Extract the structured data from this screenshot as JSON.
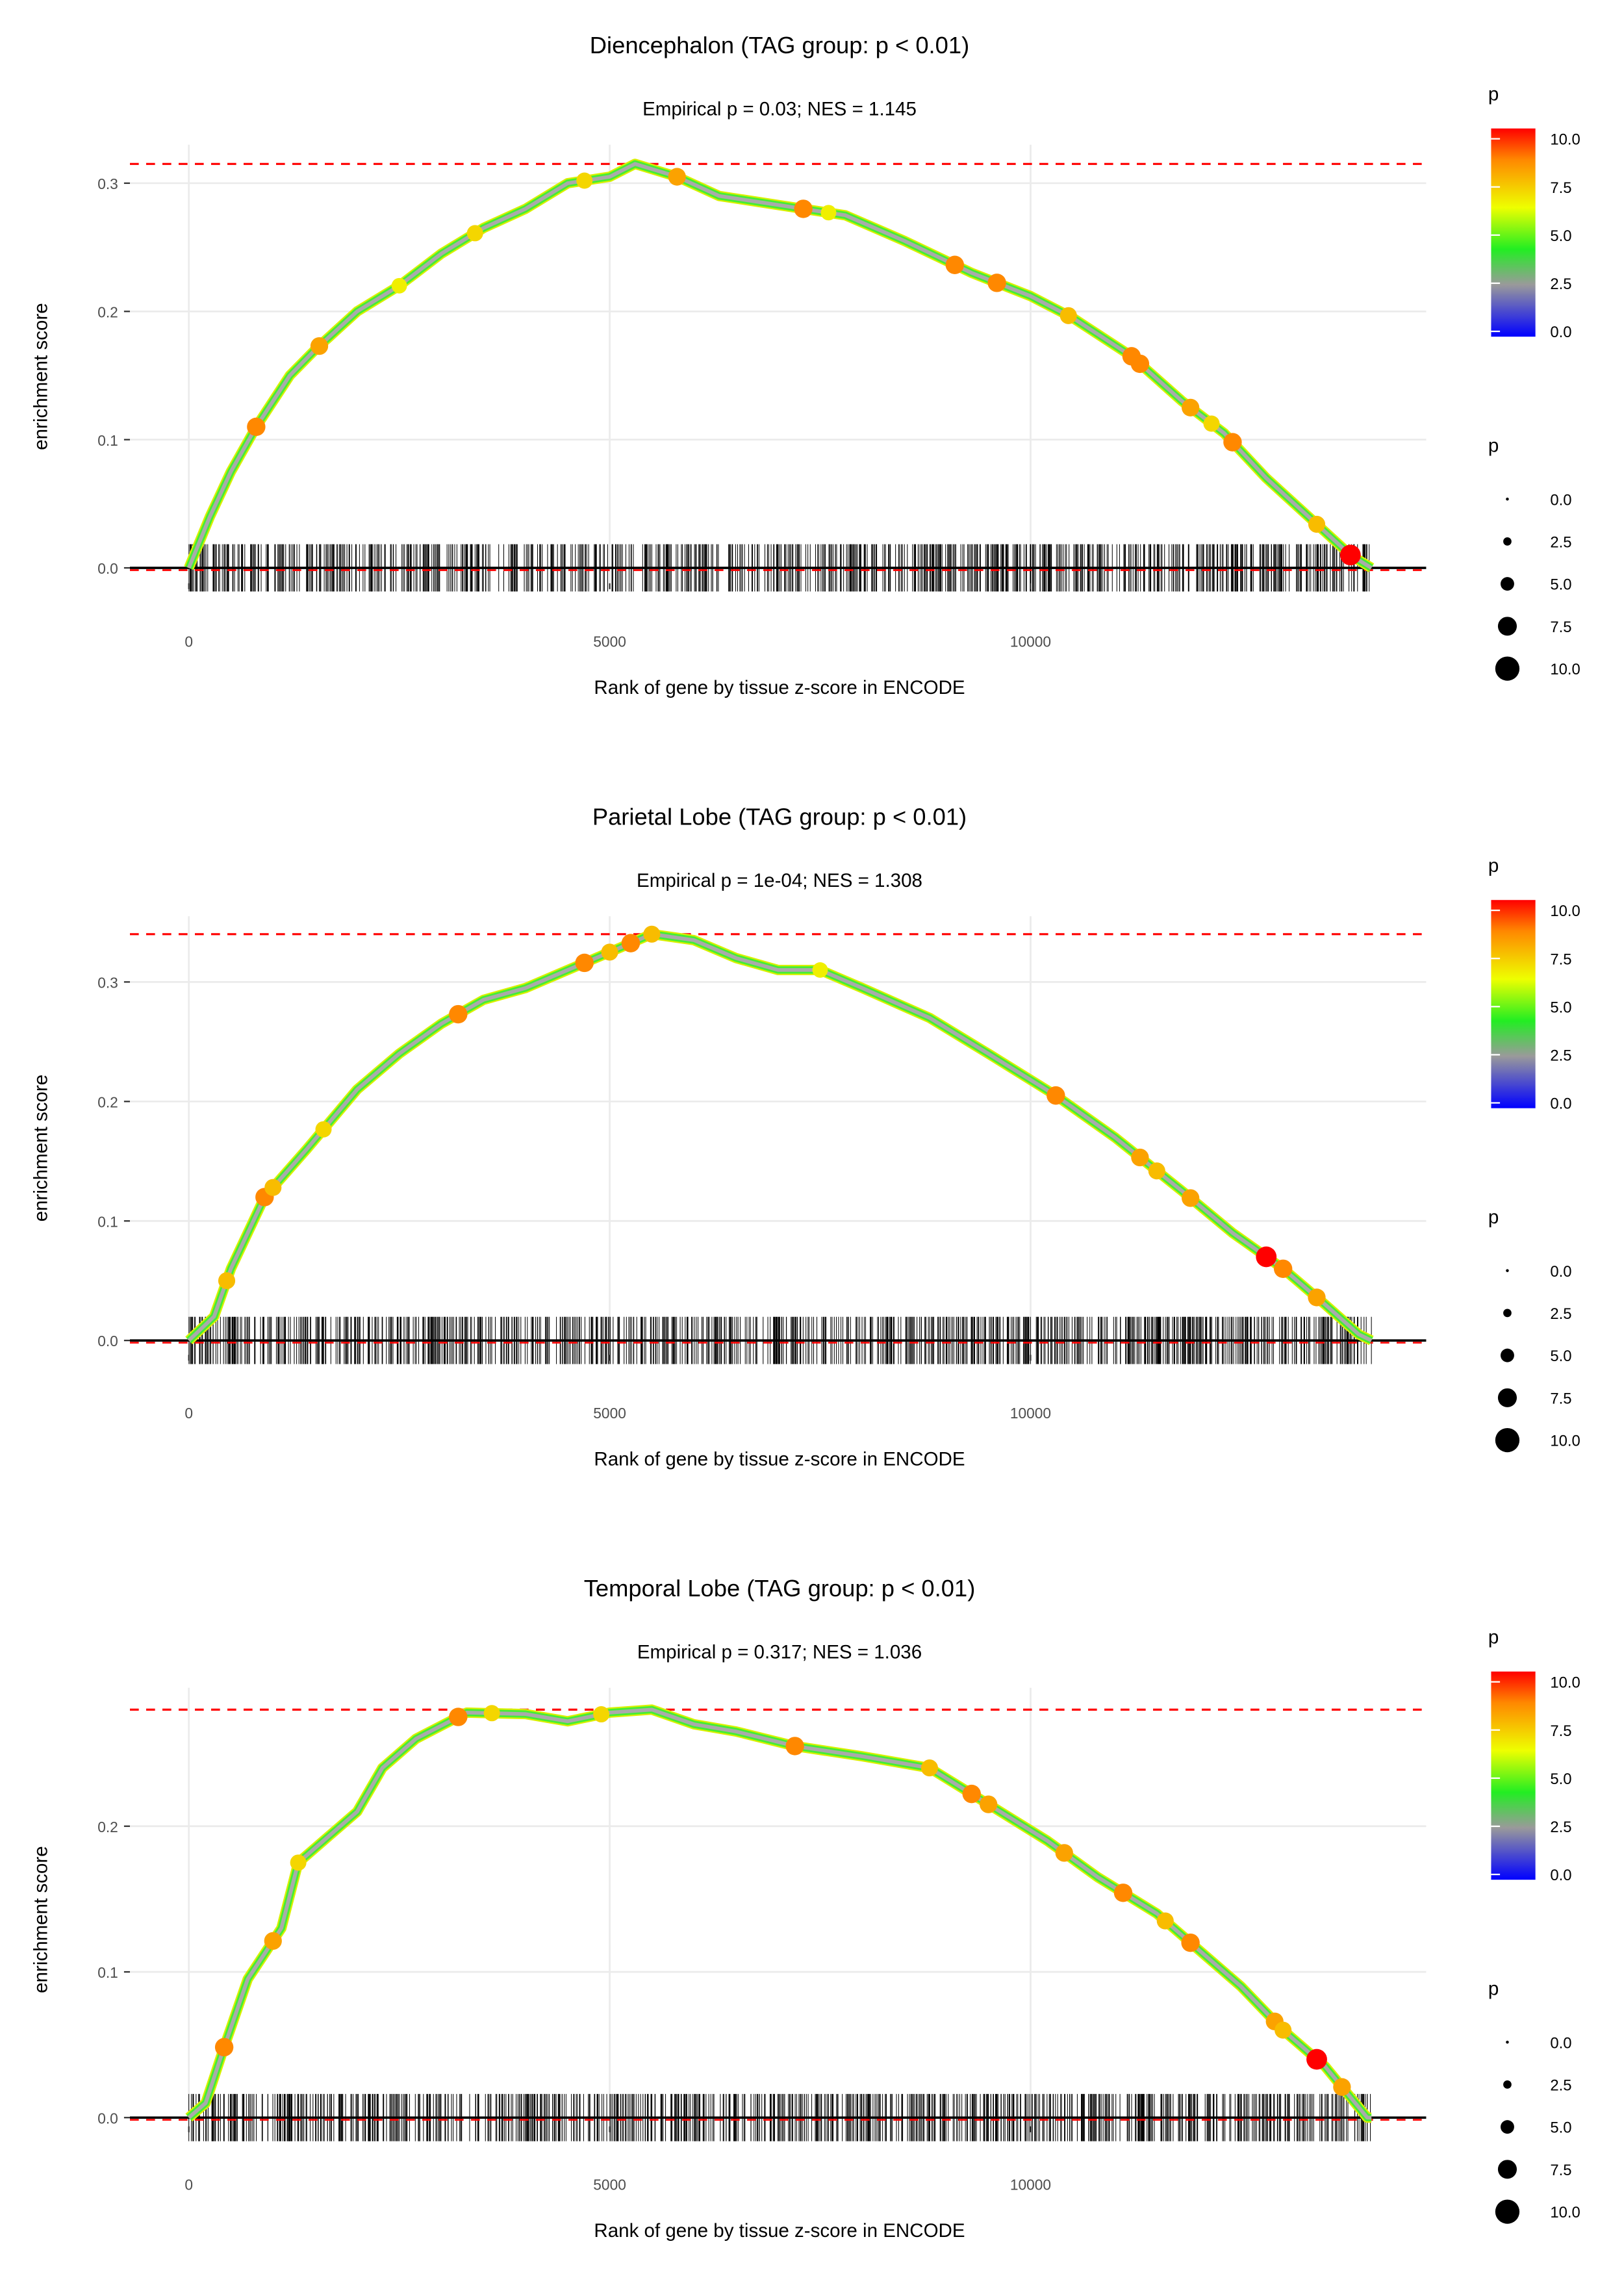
{
  "chart_data": [
    {
      "type": "line",
      "title": "Diencephalon (TAG group: p < 0.01)",
      "subtitle": "Empirical p = 0.03; NES = 1.145",
      "xlabel": "Rank of gene by tissue z-score in ENCODE",
      "ylabel": "enrichment score",
      "xlim": [
        -700,
        14700
      ],
      "ylim": [
        -0.012,
        0.33
      ],
      "xticks": [
        0,
        5000,
        10000
      ],
      "xtick_labels": [
        "0",
        "5000",
        "10000"
      ],
      "yticks": [
        0,
        0.1,
        0.2,
        0.3
      ],
      "ytick_labels": [
        "0.0",
        "0.1",
        "0.2",
        "0.3"
      ],
      "max_es": 0.315,
      "curve": [
        [
          0,
          0
        ],
        [
          250,
          0.04
        ],
        [
          500,
          0.075
        ],
        [
          800,
          0.11
        ],
        [
          1200,
          0.15
        ],
        [
          1500,
          0.17
        ],
        [
          2000,
          0.2
        ],
        [
          2500,
          0.22
        ],
        [
          3000,
          0.245
        ],
        [
          3500,
          0.265
        ],
        [
          4000,
          0.28
        ],
        [
          4500,
          0.3
        ],
        [
          5000,
          0.305
        ],
        [
          5300,
          0.315
        ],
        [
          5800,
          0.305
        ],
        [
          6300,
          0.29
        ],
        [
          7000,
          0.283
        ],
        [
          7800,
          0.275
        ],
        [
          8500,
          0.255
        ],
        [
          9300,
          0.23
        ],
        [
          10000,
          0.212
        ],
        [
          10500,
          0.195
        ],
        [
          11200,
          0.165
        ],
        [
          11800,
          0.13
        ],
        [
          12300,
          0.105
        ],
        [
          12800,
          0.07
        ],
        [
          13300,
          0.04
        ],
        [
          13800,
          0.01
        ],
        [
          14050,
          0
        ]
      ],
      "highlight_points": [
        [
          800,
          8.5
        ],
        [
          1550,
          8
        ],
        [
          2500,
          6.5
        ],
        [
          3400,
          7
        ],
        [
          4700,
          7
        ],
        [
          5800,
          8
        ],
        [
          7300,
          8.5
        ],
        [
          7600,
          6.5
        ],
        [
          9100,
          8.5
        ],
        [
          9600,
          8.5
        ],
        [
          10450,
          7.5
        ],
        [
          11200,
          8.5
        ],
        [
          11300,
          8.5
        ],
        [
          11900,
          8
        ],
        [
          12150,
          7
        ],
        [
          12400,
          8.5
        ],
        [
          13400,
          7.5
        ],
        [
          13800,
          10
        ]
      ]
    },
    {
      "type": "line",
      "title": "Parietal Lobe (TAG group: p < 0.01)",
      "subtitle": "Empirical p = 1e-04; NES = 1.308",
      "xlabel": "Rank of gene by tissue z-score in ENCODE",
      "ylabel": "enrichment score",
      "xlim": [
        -700,
        14700
      ],
      "ylim": [
        -0.012,
        0.355
      ],
      "xticks": [
        0,
        5000,
        10000
      ],
      "xtick_labels": [
        "0",
        "5000",
        "10000"
      ],
      "yticks": [
        0,
        0.1,
        0.2,
        0.3
      ],
      "ytick_labels": [
        "0.0",
        "0.1",
        "0.2",
        "0.3"
      ],
      "max_es": 0.34,
      "curve": [
        [
          0,
          0
        ],
        [
          300,
          0.02
        ],
        [
          500,
          0.06
        ],
        [
          900,
          0.12
        ],
        [
          1400,
          0.16
        ],
        [
          2000,
          0.21
        ],
        [
          2500,
          0.24
        ],
        [
          3000,
          0.265
        ],
        [
          3500,
          0.285
        ],
        [
          4000,
          0.295
        ],
        [
          4500,
          0.31
        ],
        [
          5000,
          0.325
        ],
        [
          5500,
          0.34
        ],
        [
          6000,
          0.335
        ],
        [
          6500,
          0.32
        ],
        [
          7000,
          0.31
        ],
        [
          7500,
          0.31
        ],
        [
          8000,
          0.295
        ],
        [
          8800,
          0.27
        ],
        [
          9500,
          0.24
        ],
        [
          10300,
          0.205
        ],
        [
          11000,
          0.17
        ],
        [
          11800,
          0.125
        ],
        [
          12400,
          0.09
        ],
        [
          13000,
          0.06
        ],
        [
          13500,
          0.03
        ],
        [
          13900,
          0.005
        ],
        [
          14050,
          0
        ]
      ],
      "highlight_points": [
        [
          450,
          7.5
        ],
        [
          900,
          8.5
        ],
        [
          1000,
          7.5
        ],
        [
          1600,
          7
        ],
        [
          3200,
          8.5
        ],
        [
          4700,
          8.5
        ],
        [
          5000,
          7.5
        ],
        [
          5250,
          8.5
        ],
        [
          5500,
          7.5
        ],
        [
          7500,
          6.5
        ],
        [
          10300,
          8.5
        ],
        [
          11300,
          8
        ],
        [
          11500,
          7.5
        ],
        [
          11900,
          8
        ],
        [
          12800,
          10
        ],
        [
          13000,
          8.5
        ],
        [
          13400,
          8
        ]
      ]
    },
    {
      "type": "line",
      "title": "Temporal Lobe (TAG group: p < 0.01)",
      "subtitle": "Empirical p = 0.317; NES = 1.036",
      "xlabel": "Rank of gene by tissue z-score in ENCODE",
      "ylabel": "enrichment score",
      "xlim": [
        -700,
        14700
      ],
      "ylim": [
        -0.006,
        0.295
      ],
      "xticks": [
        0,
        5000,
        10000
      ],
      "xtick_labels": [
        "0",
        "5000",
        "10000"
      ],
      "yticks": [
        0,
        0.1,
        0.2
      ],
      "ytick_labels": [
        "0.0",
        "0.1",
        "0.2"
      ],
      "max_es": 0.28,
      "curve": [
        [
          0,
          0
        ],
        [
          200,
          0.01
        ],
        [
          400,
          0.045
        ],
        [
          700,
          0.095
        ],
        [
          1100,
          0.13
        ],
        [
          1300,
          0.175
        ],
        [
          1600,
          0.19
        ],
        [
          2000,
          0.21
        ],
        [
          2300,
          0.24
        ],
        [
          2700,
          0.26
        ],
        [
          3300,
          0.278
        ],
        [
          4000,
          0.277
        ],
        [
          4500,
          0.272
        ],
        [
          5000,
          0.278
        ],
        [
          5500,
          0.28
        ],
        [
          6000,
          0.27
        ],
        [
          6500,
          0.265
        ],
        [
          7200,
          0.255
        ],
        [
          8000,
          0.248
        ],
        [
          8800,
          0.24
        ],
        [
          9500,
          0.215
        ],
        [
          10200,
          0.19
        ],
        [
          10800,
          0.165
        ],
        [
          11500,
          0.14
        ],
        [
          12000,
          0.115
        ],
        [
          12500,
          0.09
        ],
        [
          13000,
          0.06
        ],
        [
          13500,
          0.035
        ],
        [
          14000,
          0
        ],
        [
          14050,
          0
        ]
      ],
      "highlight_points": [
        [
          420,
          8.5
        ],
        [
          1000,
          8
        ],
        [
          1300,
          7
        ],
        [
          3200,
          8.5
        ],
        [
          3600,
          7
        ],
        [
          4900,
          7
        ],
        [
          7200,
          8.5
        ],
        [
          8800,
          7.5
        ],
        [
          9300,
          8.5
        ],
        [
          9500,
          8
        ],
        [
          10400,
          8
        ],
        [
          11100,
          8.5
        ],
        [
          11600,
          7.5
        ],
        [
          11900,
          8.5
        ],
        [
          12900,
          8
        ],
        [
          13000,
          7.5
        ],
        [
          13400,
          10
        ],
        [
          13700,
          8
        ]
      ]
    }
  ],
  "legend": {
    "color_title": "p",
    "color_labels": [
      "10.0",
      "7.5",
      "5.0",
      "2.5",
      "0.0"
    ],
    "size_title": "p",
    "size_labels": [
      "0.0",
      "2.5",
      "5.0",
      "7.5",
      "10.0"
    ]
  },
  "colors": {
    "max_line": "#ff0000",
    "grid": "#ebebeb",
    "rug": "#000000",
    "curve": "#aaaaaa"
  }
}
